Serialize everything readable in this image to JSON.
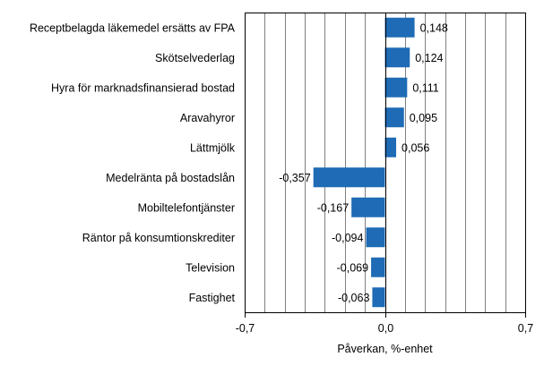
{
  "chart_data": {
    "type": "bar",
    "orientation": "horizontal",
    "categories": [
      "Receptbelagda läkemedel ersätts av FPA",
      "Skötselvederlag",
      "Hyra för marknadsfinansierad bostad",
      "Aravahyror",
      "Lättmjölk",
      "Medelränta på bostadslån",
      "Mobiltelefontjänster",
      "Räntor på konsumtionskrediter",
      "Television",
      "Fastighet"
    ],
    "values": [
      0.148,
      0.124,
      0.111,
      0.095,
      0.056,
      -0.357,
      -0.167,
      -0.094,
      -0.069,
      -0.063
    ],
    "value_labels": [
      "0,148",
      "0,124",
      "0,111",
      "0,095",
      "0,056",
      "-0,357",
      "-0,167",
      "-0,094",
      "-0,069",
      "-0,063"
    ],
    "xlim": [
      -0.7,
      0.7
    ],
    "xticks": [
      -0.7,
      0.0,
      0.7
    ],
    "xtick_labels": [
      "-0,7",
      "0,0",
      "0,7"
    ],
    "xlabel": "Påverkan, %-enhet",
    "ylabel": "",
    "title": "",
    "grid": "vertical",
    "bar_color": "#1f6bb5",
    "grid_color": "#808080"
  }
}
